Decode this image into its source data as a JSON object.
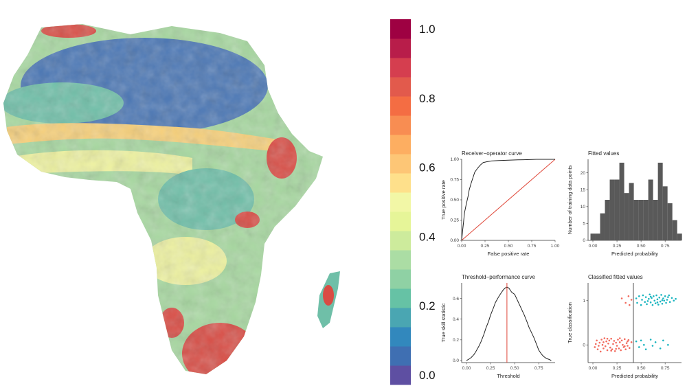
{
  "colorbar": {
    "ticks": [
      "1.0",
      "0.8",
      "0.6",
      "0.4",
      "0.2",
      "0.0"
    ],
    "tick_values": [
      1.0,
      0.8,
      0.6,
      0.4,
      0.2,
      0.0
    ],
    "colors": [
      "#5e4fa2",
      "#3f6fb2",
      "#3288bd",
      "#4aa6b2",
      "#66c2a5",
      "#8fd1a4",
      "#abdda4",
      "#cdeb9c",
      "#e6f598",
      "#f2f7a6",
      "#fee08b",
      "#fdc676",
      "#fdae61",
      "#f88d52",
      "#f46d43",
      "#e25a4c",
      "#d53e4f",
      "#b81d4a",
      "#9e0142"
    ]
  },
  "map_colors": {
    "sahara": "#4b77b5",
    "sahel_band": "#f7d07a",
    "savanna": "#a7d8a0",
    "green": "#6fbfa8",
    "hot": "#d94c44",
    "yellow": "#eef2a0"
  },
  "chart_data": [
    {
      "type": "line",
      "id": "roc",
      "title": "Receiver−operator curve",
      "xlabel": "False positive rate",
      "ylabel": "True positive rate",
      "xlim": [
        0,
        1
      ],
      "ylim": [
        0,
        1
      ],
      "xticks": [
        "0.00",
        "0.25",
        "0.50",
        "0.75",
        "1.00"
      ],
      "yticks": [
        "0.00",
        "0.25",
        "0.50",
        "0.75",
        "1.00"
      ],
      "x": [
        0,
        0.01,
        0.02,
        0.03,
        0.05,
        0.07,
        0.08,
        0.1,
        0.12,
        0.14,
        0.17,
        0.2,
        0.23,
        0.27,
        0.32,
        0.4,
        0.5,
        0.6,
        0.7,
        0.8,
        0.9,
        1.0
      ],
      "y": [
        0,
        0.12,
        0.22,
        0.34,
        0.45,
        0.55,
        0.62,
        0.7,
        0.77,
        0.84,
        0.89,
        0.93,
        0.96,
        0.97,
        0.98,
        0.985,
        0.99,
        0.993,
        0.996,
        1.0,
        1.0,
        1.0
      ],
      "reference_line": [
        [
          0,
          0
        ],
        [
          1,
          1
        ]
      ],
      "line_color": "#222222",
      "reference_color": "#e0483a"
    },
    {
      "type": "bar",
      "id": "fitted",
      "title": "Fitted values",
      "xlabel": "Predicted probability",
      "ylabel": "Number of training data points",
      "xlim": [
        -0.05,
        0.92
      ],
      "ylim": [
        0,
        24
      ],
      "xticks": [
        "0.00",
        "0.25",
        "0.50",
        "0.75"
      ],
      "yticks": [
        "0",
        "5",
        "10",
        "15",
        "20"
      ],
      "bin_width": 0.05,
      "bin_centers": [
        0.0,
        0.05,
        0.1,
        0.15,
        0.2,
        0.25,
        0.3,
        0.35,
        0.4,
        0.45,
        0.5,
        0.55,
        0.6,
        0.65,
        0.7,
        0.75,
        0.8,
        0.85,
        0.9
      ],
      "values": [
        2,
        2,
        8,
        12,
        18,
        18,
        23,
        14,
        17,
        12,
        12,
        12,
        18,
        12,
        23,
        16,
        11,
        6,
        2
      ],
      "bar_color": "#595959"
    },
    {
      "type": "line",
      "id": "threshold",
      "title": "Threshold−performance curve",
      "xlabel": "Threshold",
      "ylabel": "True skill statistic",
      "xlim": [
        -0.05,
        0.92
      ],
      "ylim": [
        -0.02,
        0.75
      ],
      "xticks": [
        "0.00",
        "0.25",
        "0.50",
        "0.75"
      ],
      "yticks": [
        "0.0",
        "0.2",
        "0.4",
        "0.6"
      ],
      "x": [
        0.0,
        0.02,
        0.05,
        0.08,
        0.1,
        0.13,
        0.15,
        0.18,
        0.2,
        0.23,
        0.25,
        0.28,
        0.3,
        0.33,
        0.35,
        0.38,
        0.4,
        0.42,
        0.44,
        0.47,
        0.5,
        0.53,
        0.55,
        0.58,
        0.6,
        0.63,
        0.65,
        0.68,
        0.7,
        0.73,
        0.75,
        0.78,
        0.8,
        0.83,
        0.86,
        0.88
      ],
      "y": [
        0.0,
        0.01,
        0.03,
        0.06,
        0.09,
        0.14,
        0.18,
        0.25,
        0.31,
        0.38,
        0.44,
        0.51,
        0.56,
        0.61,
        0.64,
        0.68,
        0.7,
        0.71,
        0.7,
        0.66,
        0.64,
        0.58,
        0.54,
        0.48,
        0.44,
        0.37,
        0.32,
        0.26,
        0.22,
        0.15,
        0.1,
        0.06,
        0.04,
        0.02,
        0.01,
        0.0
      ],
      "vline": 0.42,
      "line_color": "#222222",
      "vline_color": "#e0483a"
    },
    {
      "type": "scatter",
      "id": "classified",
      "title": "Classified fitted values",
      "xlabel": "Predicted probability",
      "ylabel": "True classification",
      "xlim": [
        -0.05,
        0.92
      ],
      "ylim": [
        -0.4,
        1.4
      ],
      "xticks": [
        "0.00",
        "0.25",
        "0.50",
        "0.75"
      ],
      "yticks": [
        "0",
        "1"
      ],
      "vline": 0.42,
      "series": [
        {
          "color": "#f26b5e",
          "points": [
            [
              0.02,
              -0.05
            ],
            [
              0.04,
              0.1
            ],
            [
              0.05,
              -0.1
            ],
            [
              0.07,
              0.05
            ],
            [
              0.08,
              -0.15
            ],
            [
              0.09,
              0.12
            ],
            [
              0.1,
              0.0
            ],
            [
              0.11,
              -0.08
            ],
            [
              0.12,
              0.15
            ],
            [
              0.13,
              -0.03
            ],
            [
              0.14,
              0.08
            ],
            [
              0.15,
              -0.12
            ],
            [
              0.16,
              0.03
            ],
            [
              0.17,
              0.1
            ],
            [
              0.18,
              -0.06
            ],
            [
              0.19,
              0.14
            ],
            [
              0.2,
              -0.1
            ],
            [
              0.21,
              0.02
            ],
            [
              0.22,
              0.09
            ],
            [
              0.23,
              -0.14
            ],
            [
              0.24,
              0.05
            ],
            [
              0.25,
              -0.02
            ],
            [
              0.26,
              0.12
            ],
            [
              0.27,
              -0.08
            ],
            [
              0.28,
              0.06
            ],
            [
              0.29,
              -0.12
            ],
            [
              0.3,
              0.1
            ],
            [
              0.31,
              0.0
            ],
            [
              0.32,
              -0.05
            ],
            [
              0.33,
              0.13
            ],
            [
              0.34,
              -0.1
            ],
            [
              0.35,
              0.04
            ],
            [
              0.36,
              -0.02
            ],
            [
              0.37,
              0.11
            ],
            [
              0.38,
              -0.07
            ],
            [
              0.4,
              0.06
            ],
            [
              0.03,
              0.02
            ],
            [
              0.06,
              -0.02
            ],
            [
              0.11,
              0.06
            ],
            [
              0.15,
              0.14
            ],
            [
              0.19,
              -0.13
            ],
            [
              0.24,
              -0.09
            ],
            [
              0.28,
              0.15
            ],
            [
              0.33,
              -0.03
            ],
            [
              0.36,
              0.08
            ],
            [
              0.3,
              1.05
            ],
            [
              0.34,
              0.95
            ],
            [
              0.37,
              1.1
            ],
            [
              0.38,
              0.9
            ],
            [
              0.4,
              1.02
            ]
          ]
        },
        {
          "color": "#1bb5c0",
          "points": [
            [
              0.45,
              0.08
            ],
            [
              0.48,
              -0.05
            ],
            [
              0.5,
              0.1
            ],
            [
              0.53,
              0.0
            ],
            [
              0.55,
              -0.1
            ],
            [
              0.6,
              0.12
            ],
            [
              0.62,
              -0.02
            ],
            [
              0.65,
              0.06
            ],
            [
              0.7,
              -0.08
            ],
            [
              0.73,
              0.1
            ],
            [
              0.78,
              0.0
            ],
            [
              0.45,
              1.05
            ],
            [
              0.46,
              0.95
            ],
            [
              0.48,
              1.1
            ],
            [
              0.5,
              0.9
            ],
            [
              0.51,
              1.02
            ],
            [
              0.52,
              1.12
            ],
            [
              0.54,
              0.97
            ],
            [
              0.55,
              1.08
            ],
            [
              0.56,
              0.92
            ],
            [
              0.58,
              1.04
            ],
            [
              0.59,
              1.14
            ],
            [
              0.6,
              0.96
            ],
            [
              0.61,
              1.06
            ],
            [
              0.62,
              0.9
            ],
            [
              0.63,
              1.1
            ],
            [
              0.64,
              1.0
            ],
            [
              0.65,
              0.94
            ],
            [
              0.66,
              1.12
            ],
            [
              0.67,
              1.03
            ],
            [
              0.68,
              0.91
            ],
            [
              0.69,
              1.07
            ],
            [
              0.7,
              0.98
            ],
            [
              0.71,
              1.13
            ],
            [
              0.72,
              0.93
            ],
            [
              0.73,
              1.05
            ],
            [
              0.74,
              1.0
            ],
            [
              0.75,
              1.1
            ],
            [
              0.76,
              0.95
            ],
            [
              0.77,
              1.02
            ],
            [
              0.78,
              1.08
            ],
            [
              0.8,
              0.97
            ],
            [
              0.82,
              1.06
            ],
            [
              0.84,
              1.0
            ],
            [
              0.86,
              1.04
            ],
            [
              0.57,
              0.99
            ],
            [
              0.6,
              1.09
            ],
            [
              0.67,
              0.96
            ],
            [
              0.72,
              1.01
            ],
            [
              0.79,
              1.12
            ]
          ]
        }
      ]
    }
  ]
}
